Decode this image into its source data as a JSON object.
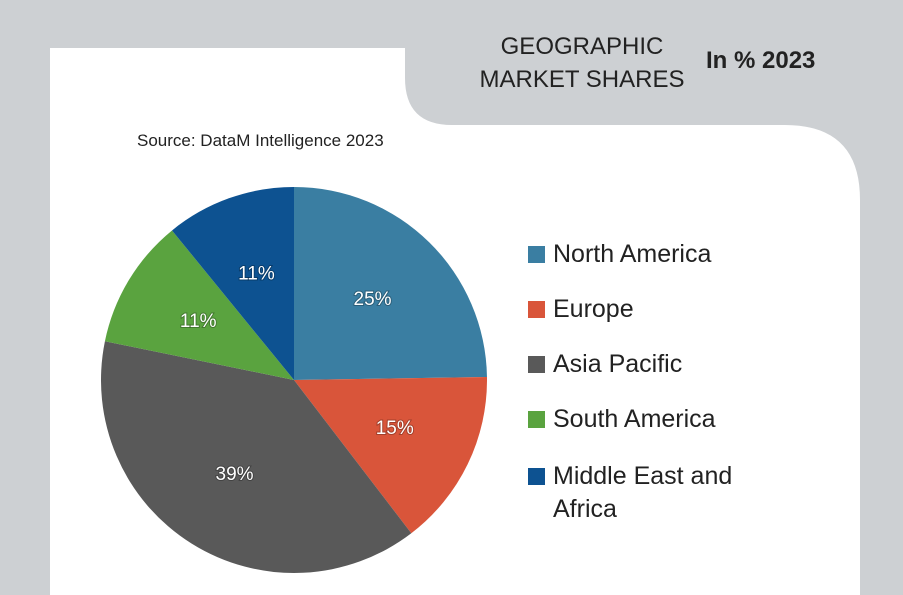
{
  "chart_data": {
    "type": "pie",
    "title": "GEOGRAPHIC MARKET SHARES",
    "subtitle": "In % 2023",
    "source": "Source: DataM Intelligence 2023",
    "categories": [
      "North America",
      "Europe",
      "Asia Pacific",
      "South America",
      "Middle East and Africa"
    ],
    "values": [
      25,
      15,
      39,
      11,
      11
    ],
    "value_labels": [
      "25%",
      "15%",
      "39%",
      "11%",
      "11%"
    ],
    "colors": [
      "#3a7ea2",
      "#d9553a",
      "#595959",
      "#5aa33f",
      "#0d5291"
    ],
    "legend": "right"
  }
}
